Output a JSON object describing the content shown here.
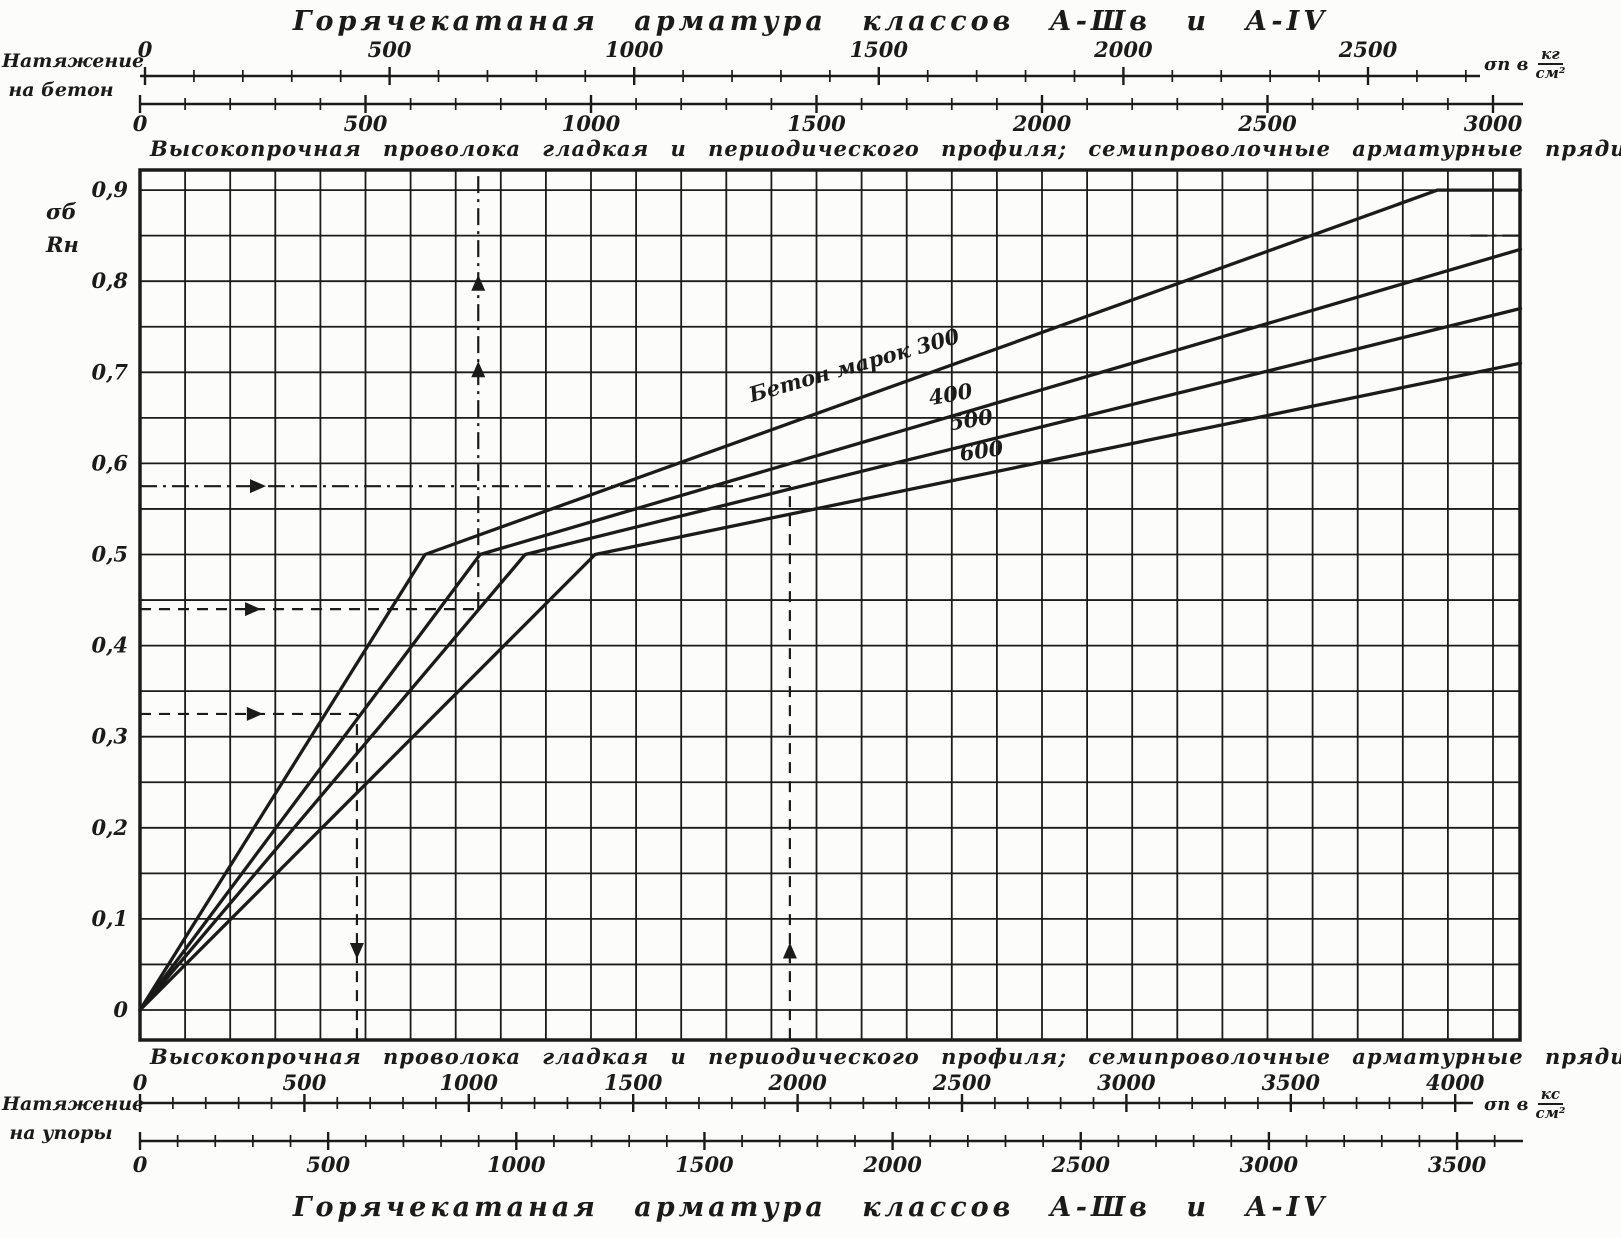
{
  "chart_data": {
    "type": "line",
    "ink_color": "#1b1b1b",
    "background": "#fcfcfa",
    "title_top": "Горячекатаная арматура классов А-Шв и А-IV",
    "title_bottom": "Горячекатаная арматура классов А-Шв и А-IV",
    "caption_top": "Высокопрочная проволока гладкая и периодического профиля; семипроволочные арматурные пряди",
    "caption_bottom": "Высокопрочная проволока гладкая и периодического профиля; семипроволочные арматурные пряди",
    "left_label_top": [
      "Натяжение",
      "на бетон"
    ],
    "left_label_bottom": [
      "Натяжение",
      "на упоры"
    ],
    "y_axis_symbol": [
      "σб",
      "Rн"
    ],
    "unit_top": {
      "prefix": "σп в",
      "num": "кг",
      "den": "см²"
    },
    "unit_bottom": {
      "prefix": "σп в",
      "num": "кс",
      "den": "см²"
    },
    "y_axis": {
      "min": 0,
      "max": 0.9,
      "grid_step": 0.05,
      "tick_step": 0.1,
      "tick_labels": [
        "0",
        "0,1",
        "0,2",
        "0,3",
        "0,4",
        "0,5",
        "0,6",
        "0,7",
        "0,8",
        "0,9"
      ]
    },
    "x_axes": [
      {
        "id": "tension-on-concrete-hot-rolled",
        "min": 0,
        "max": 2720,
        "label_step": 500,
        "minor_step": 100,
        "labels": [
          "0",
          "500",
          "1000",
          "1500",
          "2000",
          "2500"
        ]
      },
      {
        "id": "tension-on-concrete-wire",
        "min": 0,
        "max": 3060,
        "label_step": 500,
        "minor_step": 100,
        "labels": [
          "0",
          "500",
          "1000",
          "1500",
          "2000",
          "2500",
          "3000"
        ]
      },
      {
        "id": "tension-on-abutments-wire",
        "min": 0,
        "max": 4050,
        "label_step": 500,
        "minor_step": 100,
        "labels": [
          "0",
          "500",
          "1000",
          "1500",
          "2000",
          "2500",
          "3000",
          "3500",
          "4000"
        ]
      },
      {
        "id": "tension-on-abutments-hot-rolled",
        "min": 0,
        "max": 3660,
        "label_step": 500,
        "minor_step": 100,
        "labels": [
          "0",
          "500",
          "1000",
          "1500",
          "2000",
          "2500",
          "3000",
          "3500"
        ]
      }
    ],
    "x_scale_ref": "tension-on-concrete-wire",
    "series": [
      {
        "name": "300",
        "label": "Бетон марок 300",
        "points": [
          [
            0,
            0
          ],
          [
            632,
            0.5
          ],
          [
            2877,
            0.9
          ],
          [
            3061,
            0.9
          ]
        ],
        "label_pos": {
          "u": 1588,
          "v": 0.7,
          "rot": -16
        }
      },
      {
        "name": "400",
        "label": "400",
        "points": [
          [
            0,
            0
          ],
          [
            754,
            0.5
          ],
          [
            3061,
            0.835
          ]
        ],
        "label_pos": {
          "u": 1800,
          "v": 0.668,
          "rot": -10
        }
      },
      {
        "name": "500",
        "label": "500",
        "points": [
          [
            0,
            0
          ],
          [
            854,
            0.5
          ],
          [
            3061,
            0.77
          ]
        ],
        "label_pos": {
          "u": 1845,
          "v": 0.64,
          "rot": -9
        }
      },
      {
        "name": "600",
        "label": "600",
        "points": [
          [
            0,
            0
          ],
          [
            1009,
            0.5
          ],
          [
            3061,
            0.71
          ]
        ],
        "label_pos": {
          "u": 1868,
          "v": 0.606,
          "rot": -8
        }
      }
    ],
    "annotations": [
      {
        "style": "dashdot",
        "orient": "h",
        "v": 0.575,
        "u0": 0,
        "u1": 1441,
        "arrows": [
          {
            "u": 255,
            "v": 0.575,
            "dir": "right"
          }
        ]
      },
      {
        "style": "dash",
        "orient": "h",
        "v": 0.44,
        "u0": 0,
        "u1": 750,
        "arrows": [
          {
            "u": 244,
            "v": 0.44,
            "dir": "right"
          }
        ]
      },
      {
        "style": "dash",
        "orient": "h",
        "v": 0.325,
        "u0": 0,
        "u1": 481,
        "arrows": [
          {
            "u": 248,
            "v": 0.325,
            "dir": "right"
          }
        ]
      },
      {
        "style": "dashdot",
        "orient": "v",
        "u": 750,
        "v0": 0.44,
        "v1": 0.921,
        "arrows": [
          {
            "u": 750,
            "v": 0.795,
            "dir": "up"
          },
          {
            "u": 750,
            "v": 0.7,
            "dir": "up"
          }
        ]
      },
      {
        "style": "dash",
        "orient": "v",
        "u": 481,
        "v0": -0.032,
        "v1": 0.325,
        "arrows": [
          {
            "u": 481,
            "v": 0.068,
            "dir": "down"
          }
        ]
      },
      {
        "style": "dash",
        "orient": "v",
        "u": 1441,
        "v0": -0.032,
        "v1": 0.575,
        "arrows": [
          {
            "u": 1441,
            "v": 0.062,
            "dir": "up"
          }
        ]
      },
      {
        "style": "dashdot",
        "orient": "h",
        "v": 0.85,
        "u0": 2950,
        "u1": 3061,
        "arrows": []
      }
    ]
  }
}
